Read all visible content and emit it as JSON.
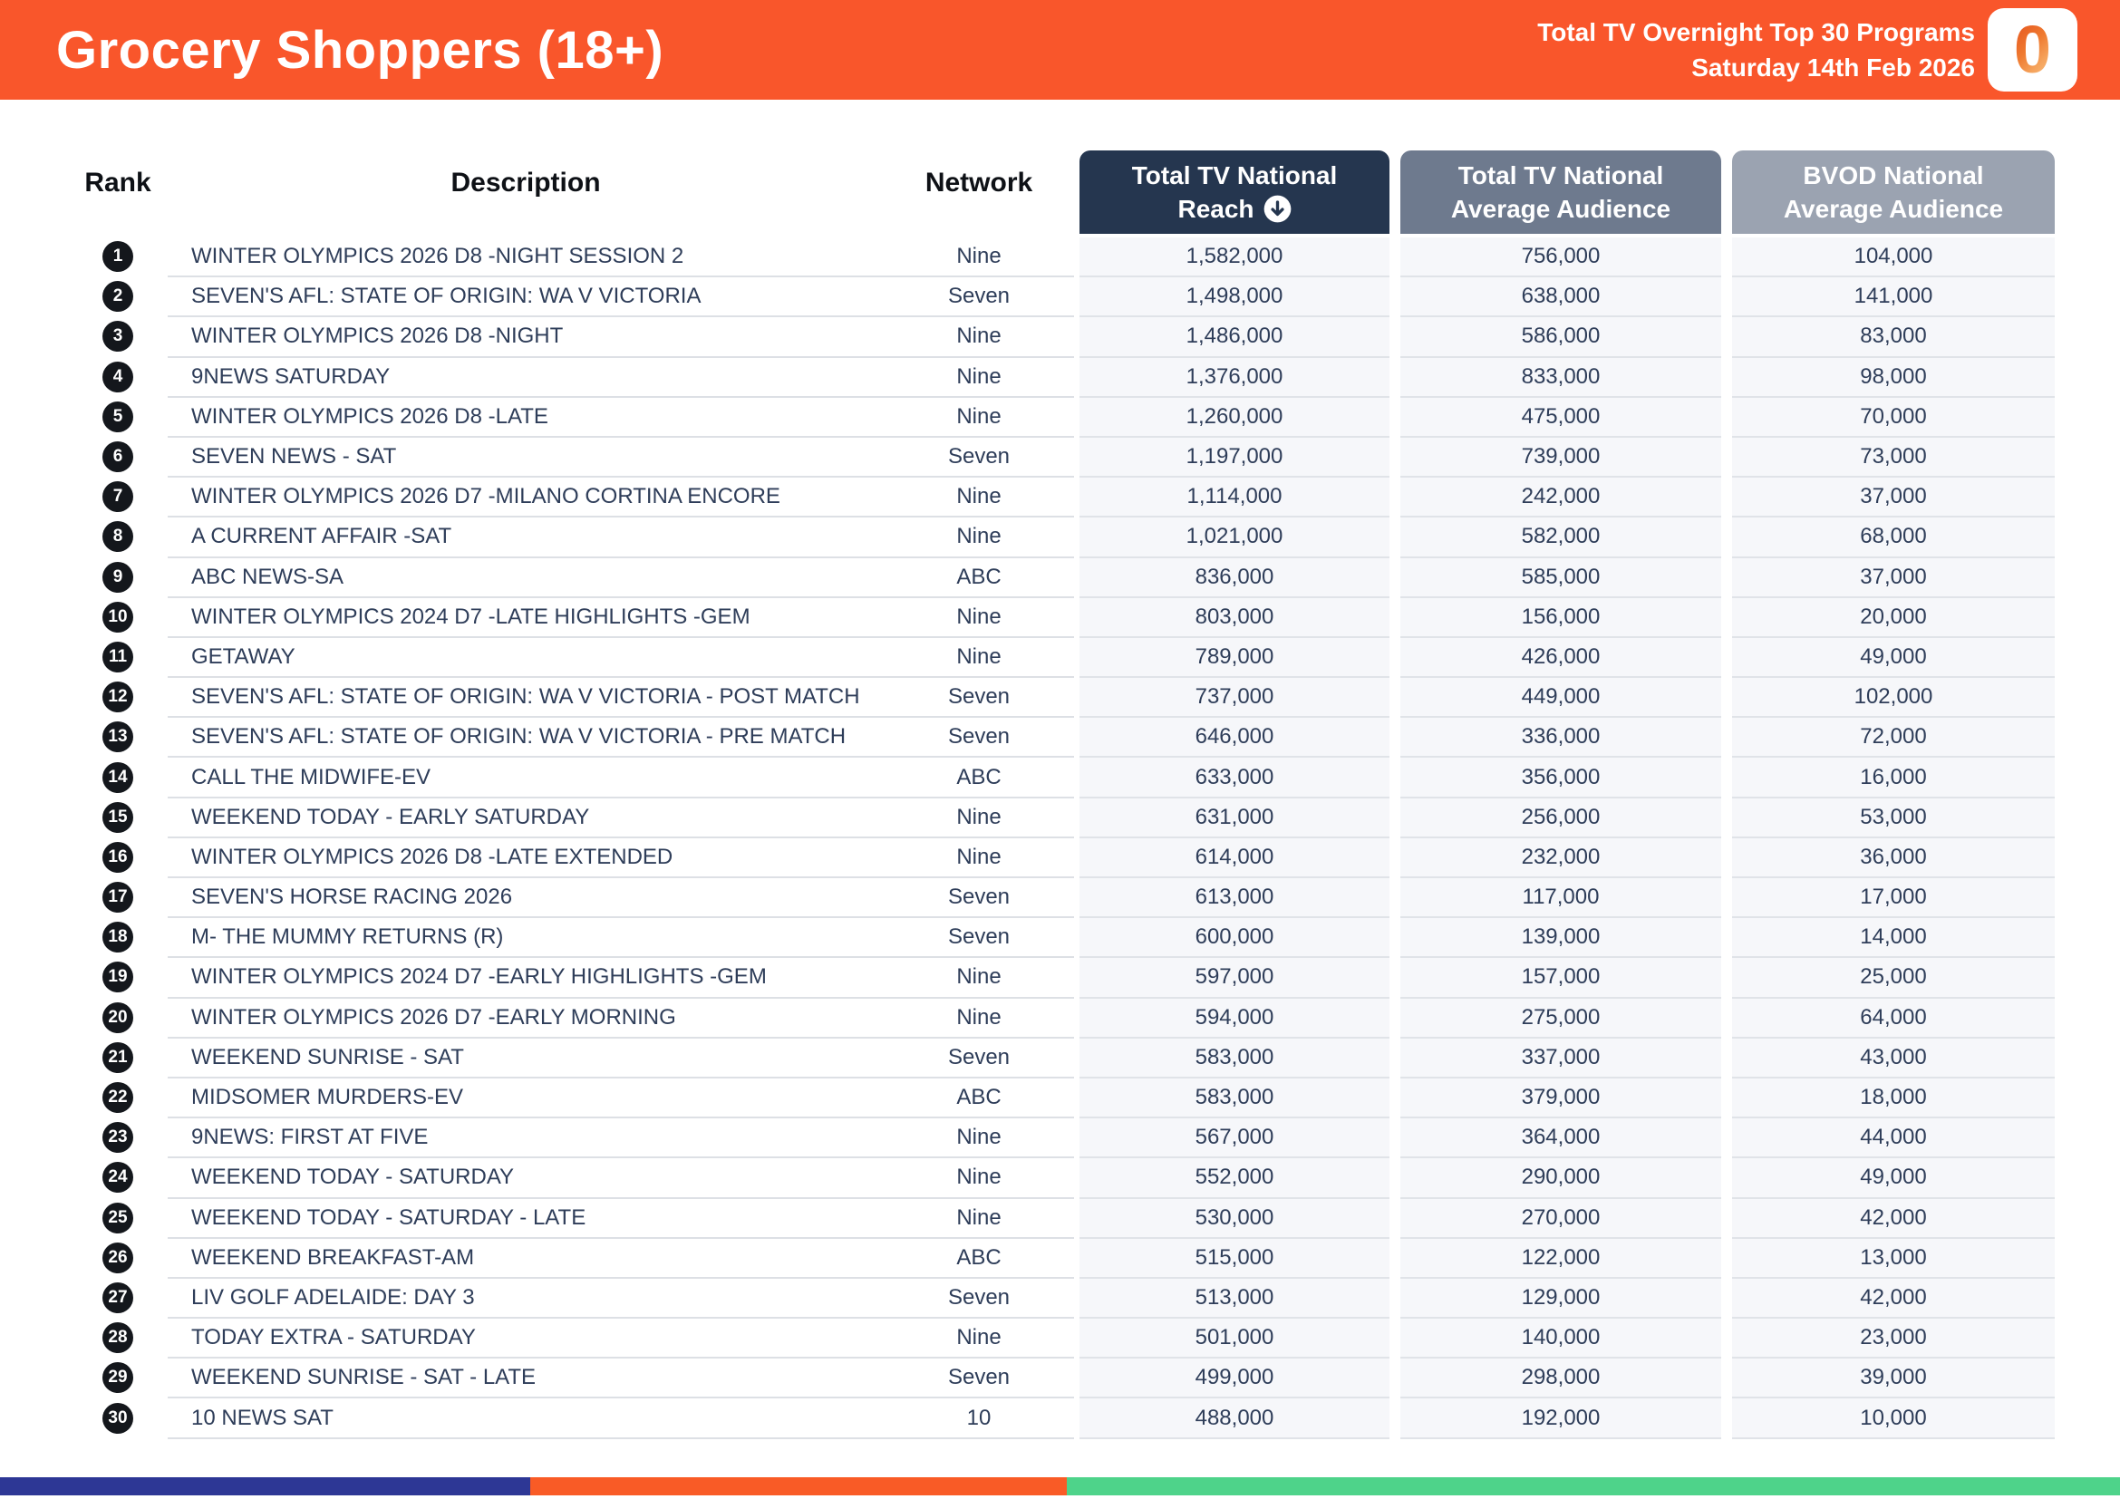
{
  "header": {
    "title": "Grocery Shoppers (18+)",
    "subtitle_line1": "Total TV Overnight Top 30 Programs",
    "subtitle_line2": "Saturday 14th Feb 2026",
    "logo_glyph": "0"
  },
  "colors": {
    "banner_orange": "#F9562B",
    "reach_header": "#25364F",
    "avg_header": "#6E7A8E",
    "bvod_header": "#9BA3B1",
    "row_text": "#2E3D59",
    "numeric_cell_bg": "#F6F7FA",
    "footer_navy": "#2D3795",
    "footer_orange": "#F95B26",
    "footer_green": "#4ED38A"
  },
  "icons": {
    "sort_descending": "circled-down-arrow"
  },
  "table": {
    "columns": {
      "rank": "Rank",
      "description": "Description",
      "network": "Network",
      "reach_line1": "Total TV National",
      "reach_line2": "Reach",
      "avg_line1": "Total TV National",
      "avg_line2": "Average Audience",
      "bvod_line1": "BVOD National",
      "bvod_line2": "Average Audience"
    },
    "rows": [
      {
        "rank": "1",
        "description": "WINTER OLYMPICS 2026 D8 -NIGHT SESSION 2",
        "network": "Nine",
        "reach": "1,582,000",
        "avg": "756,000",
        "bvod": "104,000"
      },
      {
        "rank": "2",
        "description": "SEVEN'S AFL: STATE OF ORIGIN: WA V VICTORIA",
        "network": "Seven",
        "reach": "1,498,000",
        "avg": "638,000",
        "bvod": "141,000"
      },
      {
        "rank": "3",
        "description": "WINTER OLYMPICS 2026 D8 -NIGHT",
        "network": "Nine",
        "reach": "1,486,000",
        "avg": "586,000",
        "bvod": "83,000"
      },
      {
        "rank": "4",
        "description": "9NEWS SATURDAY",
        "network": "Nine",
        "reach": "1,376,000",
        "avg": "833,000",
        "bvod": "98,000"
      },
      {
        "rank": "5",
        "description": "WINTER OLYMPICS 2026 D8 -LATE",
        "network": "Nine",
        "reach": "1,260,000",
        "avg": "475,000",
        "bvod": "70,000"
      },
      {
        "rank": "6",
        "description": "SEVEN NEWS - SAT",
        "network": "Seven",
        "reach": "1,197,000",
        "avg": "739,000",
        "bvod": "73,000"
      },
      {
        "rank": "7",
        "description": "WINTER OLYMPICS 2026 D7 -MILANO CORTINA ENCORE",
        "network": "Nine",
        "reach": "1,114,000",
        "avg": "242,000",
        "bvod": "37,000"
      },
      {
        "rank": "8",
        "description": "A CURRENT AFFAIR -SAT",
        "network": "Nine",
        "reach": "1,021,000",
        "avg": "582,000",
        "bvod": "68,000"
      },
      {
        "rank": "9",
        "description": "ABC NEWS-SA",
        "network": "ABC",
        "reach": "836,000",
        "avg": "585,000",
        "bvod": "37,000"
      },
      {
        "rank": "10",
        "description": "WINTER OLYMPICS 2024 D7 -LATE HIGHLIGHTS -GEM",
        "network": "Nine",
        "reach": "803,000",
        "avg": "156,000",
        "bvod": "20,000"
      },
      {
        "rank": "11",
        "description": "GETAWAY",
        "network": "Nine",
        "reach": "789,000",
        "avg": "426,000",
        "bvod": "49,000"
      },
      {
        "rank": "12",
        "description": "SEVEN'S AFL: STATE OF ORIGIN: WA V VICTORIA - POST  MATCH",
        "network": "Seven",
        "reach": "737,000",
        "avg": "449,000",
        "bvod": "102,000"
      },
      {
        "rank": "13",
        "description": "SEVEN'S AFL: STATE OF ORIGIN: WA V VICTORIA - PRE MATCH",
        "network": "Seven",
        "reach": "646,000",
        "avg": "336,000",
        "bvod": "72,000"
      },
      {
        "rank": "14",
        "description": "CALL THE MIDWIFE-EV",
        "network": "ABC",
        "reach": "633,000",
        "avg": "356,000",
        "bvod": "16,000"
      },
      {
        "rank": "15",
        "description": "WEEKEND TODAY - EARLY SATURDAY",
        "network": "Nine",
        "reach": "631,000",
        "avg": "256,000",
        "bvod": "53,000"
      },
      {
        "rank": "16",
        "description": "WINTER OLYMPICS 2026 D8 -LATE EXTENDED",
        "network": "Nine",
        "reach": "614,000",
        "avg": "232,000",
        "bvod": "36,000"
      },
      {
        "rank": "17",
        "description": "SEVEN'S HORSE RACING 2026",
        "network": "Seven",
        "reach": "613,000",
        "avg": "117,000",
        "bvod": "17,000"
      },
      {
        "rank": "18",
        "description": "M- THE MUMMY RETURNS (R)",
        "network": "Seven",
        "reach": "600,000",
        "avg": "139,000",
        "bvod": "14,000"
      },
      {
        "rank": "19",
        "description": "WINTER OLYMPICS 2024 D7 -EARLY HIGHLIGHTS -GEM",
        "network": "Nine",
        "reach": "597,000",
        "avg": "157,000",
        "bvod": "25,000"
      },
      {
        "rank": "20",
        "description": "WINTER OLYMPICS 2026 D7 -EARLY MORNING",
        "network": "Nine",
        "reach": "594,000",
        "avg": "275,000",
        "bvod": "64,000"
      },
      {
        "rank": "21",
        "description": "WEEKEND SUNRISE - SAT",
        "network": "Seven",
        "reach": "583,000",
        "avg": "337,000",
        "bvod": "43,000"
      },
      {
        "rank": "22",
        "description": "MIDSOMER MURDERS-EV",
        "network": "ABC",
        "reach": "583,000",
        "avg": "379,000",
        "bvod": "18,000"
      },
      {
        "rank": "23",
        "description": "9NEWS: FIRST AT FIVE",
        "network": "Nine",
        "reach": "567,000",
        "avg": "364,000",
        "bvod": "44,000"
      },
      {
        "rank": "24",
        "description": "WEEKEND TODAY - SATURDAY",
        "network": "Nine",
        "reach": "552,000",
        "avg": "290,000",
        "bvod": "49,000"
      },
      {
        "rank": "25",
        "description": "WEEKEND TODAY - SATURDAY - LATE",
        "network": "Nine",
        "reach": "530,000",
        "avg": "270,000",
        "bvod": "42,000"
      },
      {
        "rank": "26",
        "description": "WEEKEND BREAKFAST-AM",
        "network": "ABC",
        "reach": "515,000",
        "avg": "122,000",
        "bvod": "13,000"
      },
      {
        "rank": "27",
        "description": "LIV GOLF ADELAIDE: DAY 3",
        "network": "Seven",
        "reach": "513,000",
        "avg": "129,000",
        "bvod": "42,000"
      },
      {
        "rank": "28",
        "description": "TODAY EXTRA - SATURDAY",
        "network": "Nine",
        "reach": "501,000",
        "avg": "140,000",
        "bvod": "23,000"
      },
      {
        "rank": "29",
        "description": "WEEKEND SUNRISE - SAT - LATE",
        "network": "Seven",
        "reach": "499,000",
        "avg": "298,000",
        "bvod": "39,000"
      },
      {
        "rank": "30",
        "description": "10 NEWS SAT",
        "network": "10",
        "reach": "488,000",
        "avg": "192,000",
        "bvod": "10,000"
      }
    ]
  },
  "footer_bar": {
    "segments": [
      {
        "color": "#2D3795",
        "width_pct": 25.0
      },
      {
        "color": "#F95B26",
        "width_pct": 25.3
      },
      {
        "color": "#4ED38A",
        "width_pct": 49.7
      }
    ]
  }
}
